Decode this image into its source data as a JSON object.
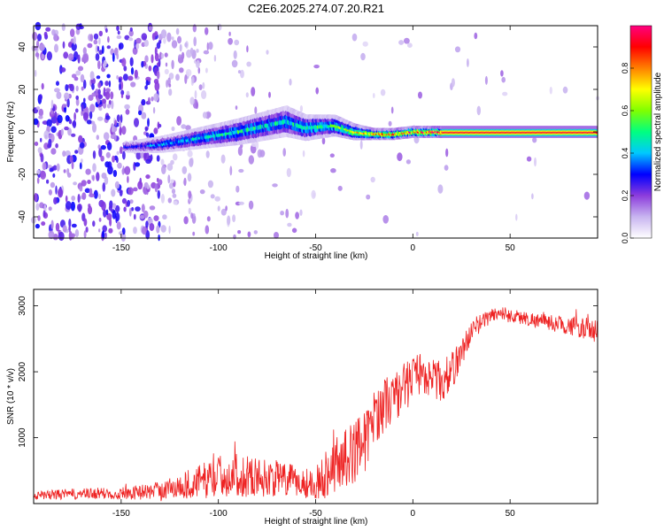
{
  "chart_data": [
    {
      "type": "heatmap",
      "title": "C2E6.2025.274.07.20.R21",
      "xlabel": "Height of straight line (km)",
      "ylabel": "Frequency (Hz)",
      "xlim": [
        -195,
        95
      ],
      "ylim": [
        -50,
        50
      ],
      "x_ticks": [
        -150,
        -100,
        -50,
        0,
        50
      ],
      "y_ticks": [
        -40,
        -20,
        0,
        20,
        40
      ],
      "grid": false,
      "colorbar": {
        "label": "Normalized spectral amplitude",
        "range": [
          0.0,
          1.0
        ],
        "ticks": [
          0.0,
          0.2,
          0.4,
          0.6,
          0.8
        ],
        "colormap": [
          "#ffffff",
          "#c8b4f0",
          "#8c3cdc",
          "#0000ff",
          "#00c8ff",
          "#00ff80",
          "#80ff00",
          "#ffff00",
          "#ff8000",
          "#ff0000",
          "#ff0080"
        ]
      },
      "ridge": {
        "description_points_x": [
          -145,
          -130,
          -110,
          -90,
          -65,
          -55,
          -40,
          -30,
          -20,
          -10,
          0,
          15,
          25,
          50,
          92
        ],
        "description_points_y": [
          -7,
          -6,
          -3,
          0,
          5,
          2,
          3,
          0,
          -1,
          -1,
          0,
          0,
          0,
          0,
          0
        ],
        "halfwidth_hz": [
          2,
          3,
          4,
          5,
          6,
          5,
          4,
          3,
          2,
          2,
          2,
          2,
          2,
          2,
          2
        ],
        "amplitude": [
          0.3,
          0.4,
          0.45,
          0.5,
          0.45,
          0.5,
          0.55,
          0.7,
          0.8,
          0.85,
          0.9,
          0.95,
          0.95,
          0.95,
          0.95
        ]
      }
    },
    {
      "type": "line",
      "title": "",
      "xlabel": "Height of straight line (km)",
      "ylabel": "SNR (10 * v/v)",
      "xlim": [
        -195,
        95
      ],
      "ylim": [
        0,
        3250
      ],
      "x_ticks": [
        -150,
        -100,
        -50,
        0,
        50
      ],
      "y_ticks": [
        1000,
        2000,
        3000
      ],
      "grid": false,
      "series": [
        {
          "name": "SNR",
          "color": "#ee2222",
          "x": [
            -195,
            -180,
            -160,
            -140,
            -130,
            -120,
            -110,
            -100,
            -90,
            -80,
            -70,
            -60,
            -50,
            -45,
            -40,
            -35,
            -30,
            -27,
            -25,
            -20,
            -15,
            -10,
            -5,
            0,
            5,
            10,
            15,
            20,
            25,
            30,
            35,
            40,
            45,
            50,
            60,
            70,
            80,
            90,
            95
          ],
          "values": [
            120,
            140,
            150,
            170,
            200,
            260,
            330,
            420,
            430,
            400,
            380,
            330,
            300,
            450,
            600,
            700,
            750,
            1100,
            900,
            1300,
            1500,
            1600,
            1750,
            1900,
            2000,
            1900,
            1850,
            2000,
            2300,
            2600,
            2750,
            2850,
            2900,
            2850,
            2800,
            2750,
            2700,
            2650,
            2600
          ],
          "noise": [
            60,
            80,
            90,
            110,
            140,
            200,
            260,
            320,
            330,
            300,
            280,
            250,
            230,
            380,
            420,
            460,
            480,
            500,
            480,
            420,
            420,
            400,
            380,
            350,
            320,
            300,
            320,
            300,
            220,
            160,
            130,
            120,
            110,
            110,
            110,
            120,
            140,
            170,
            180
          ]
        }
      ]
    }
  ]
}
